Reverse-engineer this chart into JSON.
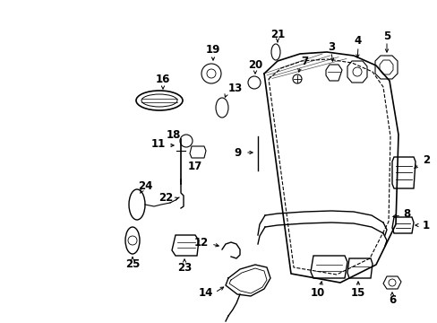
{
  "bg_color": "#ffffff",
  "fig_width": 4.89,
  "fig_height": 3.6,
  "dpi": 100,
  "line_color": "#000000",
  "label_fontsize": 8.5,
  "label_color": "#000000",
  "door_outer": {
    "x": [
      0.5,
      0.51,
      0.53,
      0.56,
      0.6,
      0.64,
      0.67,
      0.68,
      0.67,
      0.62,
      0.55,
      0.5
    ],
    "y": [
      0.92,
      0.94,
      0.95,
      0.955,
      0.95,
      0.92,
      0.87,
      0.78,
      0.6,
      0.43,
      0.38,
      0.92
    ]
  },
  "door_inner": {
    "x": [
      0.505,
      0.515,
      0.535,
      0.563,
      0.6,
      0.637,
      0.663,
      0.672,
      0.662,
      0.614,
      0.548,
      0.505
    ],
    "y": [
      0.91,
      0.928,
      0.938,
      0.943,
      0.938,
      0.91,
      0.862,
      0.775,
      0.605,
      0.44,
      0.392,
      0.91
    ]
  }
}
